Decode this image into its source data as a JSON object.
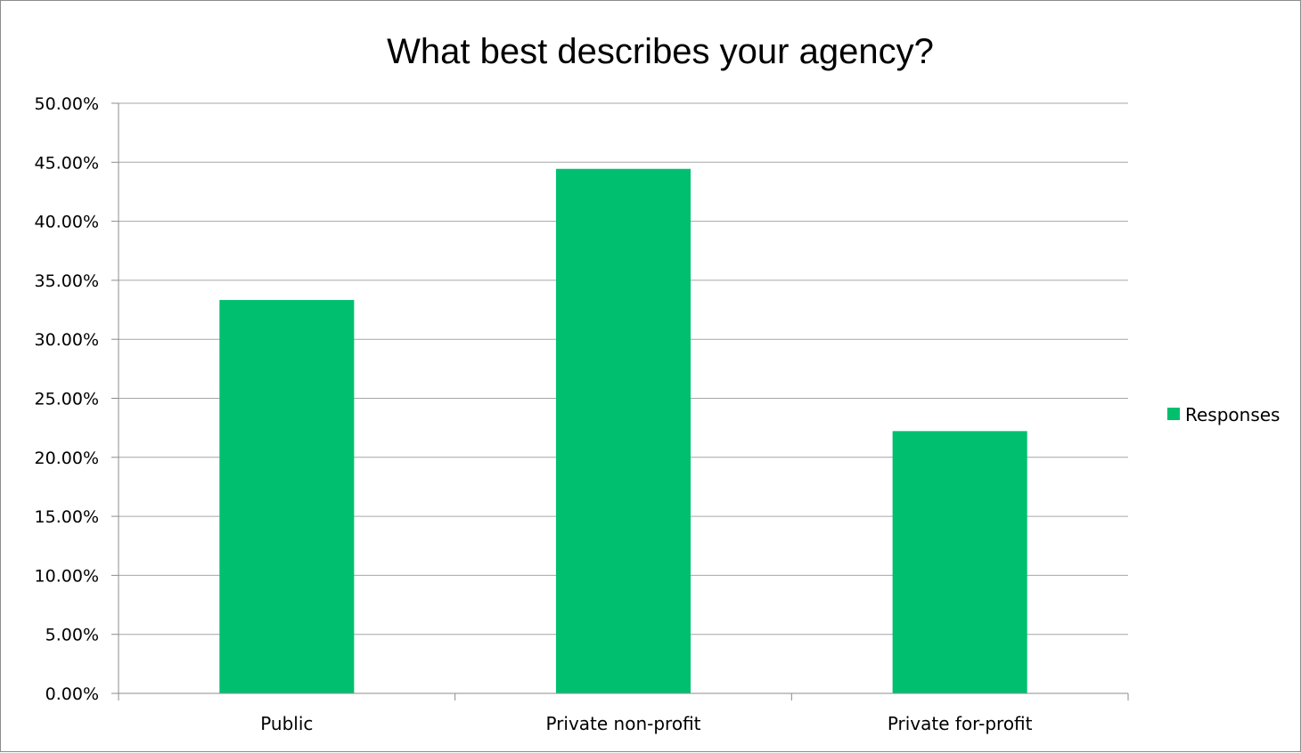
{
  "chart_data": {
    "type": "bar",
    "title": "What best describes your agency?",
    "categories": [
      "Public",
      "Private non-profit",
      "Private for-profit"
    ],
    "series": [
      {
        "name": "Responses",
        "values": [
          33.33,
          44.44,
          22.22
        ],
        "color": "#00BF6F"
      }
    ],
    "ylim": [
      0,
      50
    ],
    "yticks": [
      "0.00%",
      "5.00%",
      "10.00%",
      "15.00%",
      "20.00%",
      "25.00%",
      "30.00%",
      "35.00%",
      "40.00%",
      "45.00%",
      "50.00%"
    ],
    "xlabel": "",
    "ylabel": "",
    "grid": true,
    "legend": "right",
    "gridline_color": "#a6a6a6",
    "axis_color": "#8c8c8c"
  }
}
